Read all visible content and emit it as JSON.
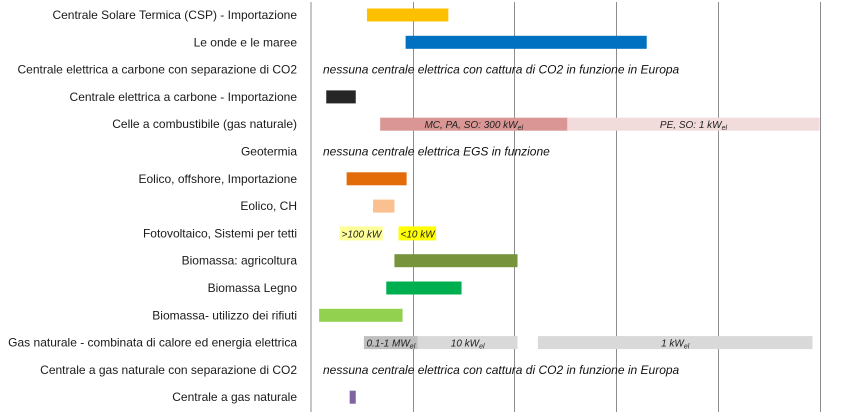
{
  "chart_data": {
    "type": "bar",
    "orientation": "horizontal-range",
    "grid": true,
    "categories": [
      "Centrale Solare Termica (CSP) - Importazione",
      "Le onde e le maree",
      "Centrale elettrica a carbone con separazione di CO2",
      "Centrale elettrica a carbone - Importazione",
      "Celle a combustibile (gas naturale)",
      "Geotermia",
      "Eolico, offshore, Importazione",
      "Eolico, CH",
      "Fotovoltaico, Sistemi per tetti",
      "Biomassa: agricoltura",
      "Biomassa Legno",
      "Biomassa- utilizzo dei rifiuti",
      "Gas naturale - combinata di calore ed energia elettrica",
      "Centrale a gas naturale con separazione di CO2",
      "Centrale a gas naturale"
    ],
    "segments": [
      {
        "row": 0,
        "start": 0.55,
        "end": 1.35,
        "color": "#ffc000"
      },
      {
        "row": 1,
        "start": 0.93,
        "end": 3.3,
        "color": "#0070c0"
      },
      {
        "row": 3,
        "start": 0.15,
        "end": 0.44,
        "color": "#262626"
      },
      {
        "row": 4,
        "start": 0.68,
        "end": 2.52,
        "color": "#d99694",
        "label": "MC, PA, SO: 300 kW",
        "sub": "el"
      },
      {
        "row": 4,
        "start": 2.52,
        "end": 5.0,
        "color": "#f2dcdb",
        "label": "PE, SO: 1 kW",
        "sub": "el"
      },
      {
        "row": 6,
        "start": 0.35,
        "end": 0.94,
        "color": "#e36c09"
      },
      {
        "row": 7,
        "start": 0.61,
        "end": 0.82,
        "color": "#fac090"
      },
      {
        "row": 9,
        "start": 0.82,
        "end": 2.03,
        "color": "#77933c"
      },
      {
        "row": 10,
        "start": 0.74,
        "end": 1.48,
        "color": "#00b050"
      },
      {
        "row": 11,
        "start": 0.08,
        "end": 0.9,
        "color": "#92d050"
      },
      {
        "row": 12,
        "start": 0.52,
        "end": 1.05,
        "color": "#bfbfbf",
        "label": "0.1-1 MW",
        "sub": "el"
      },
      {
        "row": 12,
        "start": 1.05,
        "end": 2.03,
        "color": "#d9d9d9",
        "label": "10 kW",
        "sub": "el"
      },
      {
        "row": 12,
        "start": 2.23,
        "end": 4.93,
        "color": "#d9d9d9",
        "label": "1 kW",
        "sub": "el"
      },
      {
        "row": 14,
        "start": 0.38,
        "end": 0.44,
        "color": "#8064a2"
      }
    ],
    "notes": [
      {
        "row": 2,
        "text": "nessuna centrale elettrica con cattura di CO2 in funzione in Europa"
      },
      {
        "row": 5,
        "text": "nessuna centrale elettrica EGS in funzione"
      },
      {
        "row": 13,
        "text": "nessuna centrale elettrica con cattura di CO2 in funzione in Europa"
      }
    ],
    "pv_labels": [
      {
        "row": 8,
        "at": 0.3,
        "text": ">100 kW",
        "highlight": "#ffff99"
      },
      {
        "row": 8,
        "at": 0.88,
        "text": "<10 kW",
        "highlight": "#ffff00"
      }
    ],
    "xlim": [
      0,
      5.2
    ],
    "grid_lines": [
      1,
      2,
      3,
      4,
      5
    ]
  }
}
